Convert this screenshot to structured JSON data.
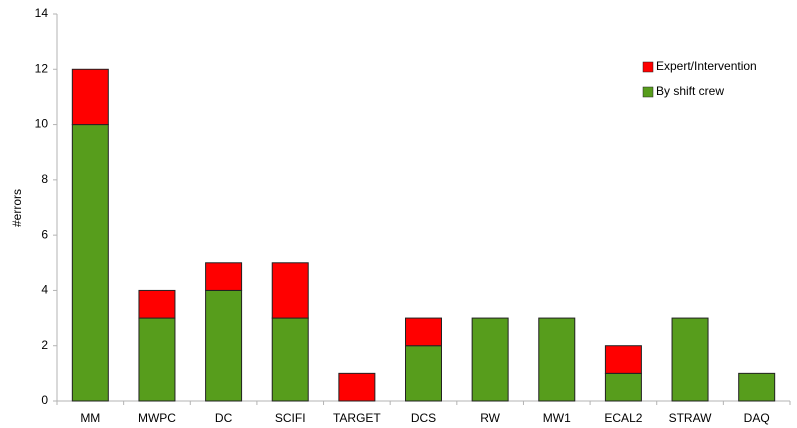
{
  "chart_data": {
    "type": "stacked_bar",
    "y_label": "#errors",
    "categories": [
      "MM",
      "MWPC",
      "DC",
      "SCIFI",
      "TARGET",
      "DCS",
      "RW",
      "MW1",
      "ECAL2",
      "STRAW",
      "DAQ"
    ],
    "series": [
      {
        "name": "By shift crew",
        "color": "#579d1c",
        "values": [
          10,
          3,
          4,
          3,
          0,
          2,
          3,
          3,
          1,
          3,
          1
        ]
      },
      {
        "name": "Expert/Intervention",
        "color": "#ff0000",
        "values": [
          2,
          1,
          1,
          2,
          1,
          1,
          0,
          0,
          1,
          0,
          0
        ]
      }
    ],
    "ylim": [
      0,
      14
    ],
    "yticks": [
      0,
      2,
      4,
      6,
      8,
      10,
      12,
      14
    ],
    "legend": "top-right"
  }
}
